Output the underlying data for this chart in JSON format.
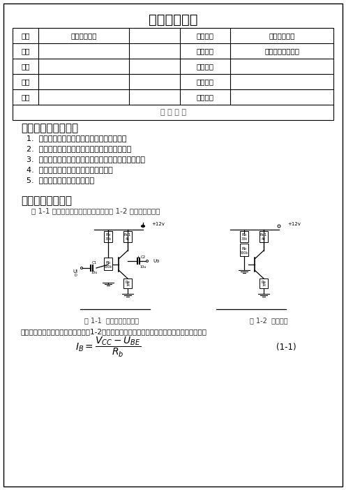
{
  "title": "学生实验报告",
  "table_rows": [
    [
      "院别",
      "电子信息学院",
      "课程名称",
      "模拟电路实验"
    ],
    [
      "班级",
      "",
      "实验名称",
      "基本共射放大电路"
    ],
    [
      "姓名",
      "",
      "实验时间",
      ""
    ],
    [
      "学号",
      "",
      "指导教师",
      ""
    ],
    [
      "成绩",
      "",
      "批改时间",
      ""
    ]
  ],
  "report_content_label": "报 告 内 容",
  "section1_title": "一、实验目的和任务",
  "section1_items": [
    "加深对基本共射放大电路放大特性的理解；",
    "学习放大电路的静态工作点参数的测量方法；",
    "了解电路参数对静态工作点的影响和静态调试方法；",
    "学习放大电路交流参数的测量方法；",
    "学习常用电子仪器的使用。"
  ],
  "section2_title": "二、实验原理介绍",
  "section2_intro": "图 1-1 为基本共射放大电路原理图，图 1-2 是其直流通路。",
  "fig1_caption": "图 1-1  基本共射放大电路",
  "fig2_caption": "图 1-2  直流通路",
  "section2_text": "首先，对该电路作直流分析。分析图1-2的直流通路，可得到如下直流工作参数的关系表达式：",
  "formula": "I_B = (V_CC - U_BE) / R_b",
  "formula_label": "(1-1)",
  "bg_color": "#ffffff",
  "text_color": "#000000",
  "border_color": "#000000"
}
